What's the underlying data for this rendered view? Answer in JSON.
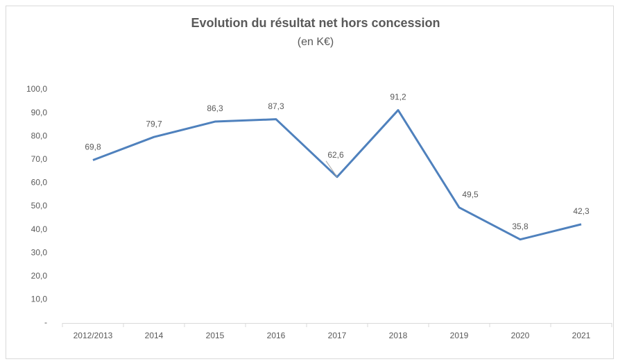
{
  "chart_data": {
    "type": "line",
    "title": "Evolution du résultat net hors concession",
    "subtitle": "(en K€)",
    "categories": [
      "2012/2013",
      "2014",
      "2015",
      "2016",
      "2017",
      "2018",
      "2019",
      "2020",
      "2021"
    ],
    "series": [
      {
        "name": "Résultat net hors concession",
        "color": "#4f81bd",
        "values": [
          69.8,
          79.7,
          86.3,
          87.3,
          62.6,
          91.2,
          49.5,
          35.8,
          42.3
        ],
        "value_labels": [
          "69,8",
          "79,7",
          "86,3",
          "87,3",
          "62,6",
          "91,2",
          "49,5",
          "35,8",
          "42,3"
        ]
      }
    ],
    "ylim": [
      0,
      100
    ],
    "yticks": [
      {
        "value": 0,
        "label": "-"
      },
      {
        "value": 10,
        "label": "10,0"
      },
      {
        "value": 20,
        "label": "20,0"
      },
      {
        "value": 30,
        "label": "30,0"
      },
      {
        "value": 40,
        "label": "40,0"
      },
      {
        "value": 50,
        "label": "50,0"
      },
      {
        "value": 60,
        "label": "60,0"
      },
      {
        "value": 70,
        "label": "70,0"
      },
      {
        "value": 80,
        "label": "80,0"
      },
      {
        "value": 90,
        "label": "90,0"
      },
      {
        "value": 100,
        "label": "100,0"
      }
    ],
    "grid": false
  }
}
